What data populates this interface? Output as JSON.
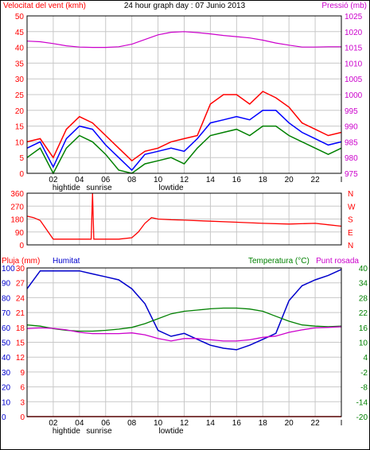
{
  "colors": {
    "wind_speed": "#ff0000",
    "wind_avg": "#0000ff",
    "wind_low": "#008000",
    "pressure": "#cc00cc",
    "direction": "#ff0000",
    "rain": "#ff0000",
    "humidity": "#0000cc",
    "temperature": "#008000",
    "dewpoint": "#cc00cc",
    "grid": "#c8c8c8",
    "frame": "#000000"
  },
  "chart_data": [
    {
      "type": "line",
      "title": "24 hour graph day : 07 Junio 2013",
      "ylabel_left": "Velocitat del vent (kmh)",
      "ylabel_right": "Pressió (mb)",
      "x_ticks": [
        "02",
        "04",
        "06",
        "08",
        "10",
        "12",
        "14",
        "16",
        "18",
        "20",
        "22",
        "I"
      ],
      "x_events": [
        "hightide",
        "sunrise",
        "lowtide"
      ],
      "y_ticks_left": [
        0,
        5,
        10,
        15,
        20,
        25,
        30,
        35,
        40,
        45,
        50
      ],
      "y_ticks_right": [
        975,
        980,
        985,
        990,
        995,
        1000,
        1005,
        1010,
        1015,
        1020,
        1025
      ],
      "ylim_left": [
        0,
        50
      ],
      "ylim_right": [
        975,
        1025
      ],
      "grid": true,
      "x": [
        0,
        1,
        2,
        3,
        4,
        5,
        6,
        7,
        8,
        9,
        10,
        11,
        12,
        13,
        14,
        15,
        16,
        17,
        18,
        19,
        20,
        21,
        22,
        23,
        24
      ],
      "series": [
        {
          "role": "wind_speed",
          "values": [
            10,
            11,
            5,
            14,
            18,
            16,
            12,
            8,
            4,
            7,
            8,
            10,
            11,
            12,
            22,
            25,
            25,
            22,
            26,
            24,
            21,
            16,
            14,
            12,
            13
          ]
        },
        {
          "role": "wind_avg",
          "values": [
            8,
            10,
            2,
            11,
            15,
            14,
            9,
            5,
            1,
            6,
            7,
            8,
            7,
            11,
            16,
            17,
            18,
            17,
            20,
            20,
            16,
            13,
            11,
            9,
            10
          ]
        },
        {
          "role": "wind_low",
          "values": [
            5,
            8,
            0,
            8,
            12,
            10,
            6,
            1,
            0,
            3,
            4,
            5,
            3,
            8,
            12,
            13,
            14,
            12,
            15,
            15,
            12,
            10,
            8,
            6,
            8
          ]
        },
        {
          "role": "pressure",
          "values": [
            1017,
            1016.8,
            1016.2,
            1015.5,
            1015.1,
            1015,
            1015,
            1015.2,
            1016,
            1017.5,
            1019,
            1019.8,
            1020,
            1019.7,
            1019.3,
            1018.8,
            1018.4,
            1018,
            1017.3,
            1016.4,
            1015.7,
            1015.1,
            1015.1,
            1015.2,
            1015.2
          ]
        }
      ]
    },
    {
      "type": "line",
      "ylabel_right": [
        "N",
        "W",
        "S",
        "E",
        "N"
      ],
      "y_ticks_left": [
        0,
        90,
        180,
        270,
        360
      ],
      "ylim": [
        0,
        360
      ],
      "grid": true,
      "x": [
        0,
        0.5,
        1,
        2,
        3,
        4,
        4.9,
        5,
        5.1,
        6,
        7,
        8,
        8.5,
        9,
        9.5,
        10,
        11,
        12,
        14,
        16,
        18,
        20,
        22,
        23,
        24
      ],
      "series": [
        {
          "role": "direction",
          "values": [
            200,
            190,
            170,
            40,
            40,
            40,
            40,
            360,
            40,
            40,
            40,
            50,
            90,
            150,
            190,
            180,
            175,
            172,
            165,
            158,
            150,
            145,
            150,
            140,
            130
          ]
        }
      ]
    },
    {
      "type": "line",
      "ylabel_left": [
        "Pluja (mm)",
        "Humitat"
      ],
      "ylabel_right": [
        "Temperatura (°C)",
        "Punt rosada"
      ],
      "x_ticks": [
        "02",
        "04",
        "06",
        "08",
        "10",
        "12",
        "14",
        "16",
        "18",
        "20",
        "22",
        "I"
      ],
      "x_events": [
        "hightide",
        "sunrise",
        "lowtide"
      ],
      "y_ticks_humidity": [
        0,
        10,
        20,
        30,
        40,
        50,
        60,
        70,
        80,
        90,
        100
      ],
      "y_ticks_rain": [
        0,
        3,
        6,
        9,
        12,
        15,
        18,
        21,
        24,
        27,
        30
      ],
      "y_ticks_temperature": [
        -20,
        -14,
        -8,
        -2,
        4,
        10,
        16,
        22,
        28,
        34,
        40
      ],
      "ylim_humidity": [
        0,
        100
      ],
      "ylim_temperature": [
        -20,
        40
      ],
      "grid": true,
      "x": [
        0,
        1,
        2,
        3,
        4,
        5,
        6,
        7,
        8,
        9,
        10,
        11,
        12,
        13,
        14,
        15,
        16,
        17,
        18,
        19,
        20,
        21,
        22,
        23,
        24
      ],
      "series": [
        {
          "role": "humidity",
          "values": [
            86,
            98,
            98,
            98,
            98,
            96,
            94,
            92,
            86,
            76,
            58,
            54,
            56,
            52,
            48,
            46,
            45,
            48,
            52,
            56,
            78,
            88,
            92,
            95,
            99
          ]
        },
        {
          "role": "temperature",
          "values": [
            17,
            16.5,
            15.5,
            14.8,
            14.5,
            14.5,
            14.8,
            15.3,
            16,
            17.5,
            19.5,
            21.5,
            22.5,
            23,
            23.5,
            23.8,
            23.8,
            23.4,
            22.5,
            20.5,
            18.5,
            17,
            16.5,
            16.3,
            16.5
          ]
        },
        {
          "role": "dewpoint",
          "values": [
            15.5,
            15.8,
            15.6,
            15,
            14,
            13.5,
            13.5,
            13.5,
            13.8,
            13,
            11.5,
            10.5,
            11.5,
            11.5,
            11,
            10.5,
            10.5,
            11,
            12,
            12.5,
            14,
            15,
            15.8,
            16,
            16.3
          ]
        },
        {
          "role": "rain",
          "values": [
            0,
            0,
            0,
            0,
            0,
            0,
            0,
            0,
            0,
            0,
            0,
            0,
            0,
            0,
            0,
            0,
            0,
            0,
            0,
            0,
            0,
            0,
            0,
            0,
            0
          ]
        }
      ]
    }
  ]
}
